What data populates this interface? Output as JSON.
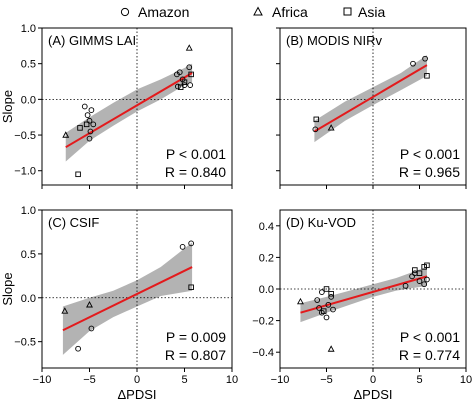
{
  "legend": {
    "position": "top",
    "items": [
      {
        "label": "Amazon",
        "marker": "circle"
      },
      {
        "label": "Africa",
        "marker": "triangle"
      },
      {
        "label": "Asia",
        "marker": "square"
      }
    ]
  },
  "colors": {
    "fit_line": "#e31a1c",
    "band": "#b3b3b3",
    "axis": "#000000"
  },
  "chart_data": [
    {
      "type": "scatter",
      "id": "A",
      "title": "(A) GIMMS LAI",
      "xlabel": "",
      "ylabel": "Slope",
      "xlim": [
        -10,
        10
      ],
      "ylim": [
        -1.2,
        1.0
      ],
      "xticks": [
        -10,
        -5,
        0,
        5,
        10
      ],
      "yticks": [
        -1.0,
        -0.5,
        0.0,
        0.5,
        1.0
      ],
      "xtick_labels": [
        "",
        "",
        "",
        "",
        ""
      ],
      "ytick_labels": [
        "−1.0",
        "−0.5",
        "0.0",
        "0.5",
        "1.0"
      ],
      "stats": {
        "p": "P < 0.001",
        "r": "R = 0.840"
      },
      "fit": {
        "x0": -7.5,
        "x1": 5.8,
        "y0": -0.67,
        "y1": 0.37
      },
      "band": {
        "upper": [
          [
            -7.5,
            -0.47
          ],
          [
            -5,
            -0.25
          ],
          [
            -2.5,
            -0.05
          ],
          [
            0,
            0.14
          ],
          [
            2.5,
            0.28
          ],
          [
            5,
            0.44
          ],
          [
            5.8,
            0.5
          ]
        ],
        "lower": [
          [
            -7.5,
            -0.87
          ],
          [
            -5,
            -0.58
          ],
          [
            -2.5,
            -0.37
          ],
          [
            0,
            -0.17
          ],
          [
            2.5,
            0.0
          ],
          [
            5,
            0.2
          ],
          [
            5.8,
            0.24
          ]
        ]
      },
      "series": [
        {
          "name": "Amazon",
          "marker": "circle",
          "points": [
            [
              -5.5,
              -0.1
            ],
            [
              -5.2,
              -0.22
            ],
            [
              -5.0,
              -0.3
            ],
            [
              -4.8,
              -0.15
            ],
            [
              -4.9,
              -0.45
            ],
            [
              -5.0,
              -0.55
            ],
            [
              -4.6,
              -0.35
            ],
            [
              4.2,
              0.35
            ],
            [
              4.5,
              0.38
            ],
            [
              4.8,
              0.28
            ],
            [
              5.0,
              0.2
            ],
            [
              5.5,
              0.45
            ],
            [
              5.6,
              0.2
            ],
            [
              4.3,
              0.18
            ]
          ]
        },
        {
          "name": "Africa",
          "marker": "triangle",
          "points": [
            [
              -7.5,
              -0.5
            ],
            [
              5.5,
              0.72
            ]
          ]
        },
        {
          "name": "Asia",
          "marker": "square",
          "points": [
            [
              -6.2,
              -1.05
            ],
            [
              -6.0,
              -0.4
            ],
            [
              -5.3,
              -0.35
            ],
            [
              4.6,
              0.17
            ],
            [
              5.0,
              0.24
            ],
            [
              5.7,
              0.35
            ]
          ]
        }
      ]
    },
    {
      "type": "scatter",
      "id": "B",
      "title": "(B) MODIS NIRv",
      "xlabel": "",
      "ylabel": "",
      "xlim": [
        -10,
        10
      ],
      "ylim": [
        -1.2,
        1.0
      ],
      "xticks": [
        -10,
        -5,
        0,
        5,
        10
      ],
      "yticks": [
        -1.0,
        -0.5,
        0.0,
        0.5,
        1.0
      ],
      "xtick_labels": [
        "",
        "",
        "",
        "",
        ""
      ],
      "ytick_labels": [
        "",
        "",
        "",
        "",
        ""
      ],
      "stats": {
        "p": "P < 0.001",
        "r": "R = 0.965"
      },
      "fit": {
        "x0": -6.3,
        "x1": 5.8,
        "y0": -0.45,
        "y1": 0.48
      },
      "band": {
        "upper": [
          [
            -6.3,
            -0.3
          ],
          [
            -3,
            -0.03
          ],
          [
            0,
            0.17
          ],
          [
            3,
            0.37
          ],
          [
            5.8,
            0.62
          ]
        ],
        "lower": [
          [
            -6.3,
            -0.6
          ],
          [
            -3,
            -0.3
          ],
          [
            0,
            -0.08
          ],
          [
            3,
            0.13
          ],
          [
            5.8,
            0.33
          ]
        ]
      },
      "series": [
        {
          "name": "Amazon",
          "marker": "circle",
          "points": [
            [
              -6.2,
              -0.42
            ],
            [
              4.3,
              0.5
            ],
            [
              5.6,
              0.57
            ]
          ]
        },
        {
          "name": "Africa",
          "marker": "triangle",
          "points": [
            [
              -4.5,
              -0.4
            ]
          ]
        },
        {
          "name": "Asia",
          "marker": "square",
          "points": [
            [
              -6.1,
              -0.28
            ],
            [
              5.8,
              0.33
            ]
          ]
        }
      ]
    },
    {
      "type": "scatter",
      "id": "C",
      "title": "(C) CSIF",
      "xlabel": "ΔPDSI",
      "ylabel": "Slope",
      "xlim": [
        -10,
        10
      ],
      "ylim": [
        -0.8,
        1.0
      ],
      "xticks": [
        -10,
        -5,
        0,
        5,
        10
      ],
      "yticks": [
        -0.5,
        0.0,
        0.5,
        1.0
      ],
      "xtick_labels": [
        "−10",
        "−5",
        "0",
        "5",
        "10"
      ],
      "ytick_labels": [
        "−0.5",
        "0.0",
        "0.5",
        "1.0"
      ],
      "stats": {
        "p": "P = 0.009",
        "r": "R = 0.807"
      },
      "fit": {
        "x0": -7.8,
        "x1": 5.8,
        "y0": -0.37,
        "y1": 0.35
      },
      "band": {
        "upper": [
          [
            -7.8,
            -0.1
          ],
          [
            -5,
            0.0
          ],
          [
            -2.5,
            0.08
          ],
          [
            0,
            0.2
          ],
          [
            2.5,
            0.35
          ],
          [
            5.8,
            0.63
          ]
        ],
        "lower": [
          [
            -7.8,
            -0.65
          ],
          [
            -5,
            -0.38
          ],
          [
            -2.5,
            -0.22
          ],
          [
            0,
            -0.1
          ],
          [
            2.5,
            0.02
          ],
          [
            5.8,
            0.08
          ]
        ]
      },
      "series": [
        {
          "name": "Amazon",
          "marker": "circle",
          "points": [
            [
              -6.2,
              -0.58
            ],
            [
              -4.8,
              -0.35
            ],
            [
              4.8,
              0.58
            ],
            [
              5.7,
              0.62
            ]
          ]
        },
        {
          "name": "Africa",
          "marker": "triangle",
          "points": [
            [
              -7.6,
              -0.15
            ],
            [
              -5.0,
              -0.08
            ]
          ]
        },
        {
          "name": "Asia",
          "marker": "square",
          "points": [
            [
              5.7,
              0.12
            ]
          ]
        }
      ]
    },
    {
      "type": "scatter",
      "id": "D",
      "title": "(D) Ku-VOD",
      "xlabel": "ΔPDSI",
      "ylabel": "",
      "xlim": [
        -10,
        10
      ],
      "ylim": [
        -0.5,
        0.5
      ],
      "xticks": [
        -10,
        -5,
        0,
        5,
        10
      ],
      "yticks": [
        -0.4,
        -0.2,
        0.0,
        0.2,
        0.4
      ],
      "xtick_labels": [
        "−10",
        "−5",
        "0",
        "5",
        "10"
      ],
      "ytick_labels": [
        "−0.4",
        "−0.2",
        "0.0",
        "0.2",
        "0.4"
      ],
      "stats": {
        "p": "P < 0.001",
        "r": "R = 0.774"
      },
      "fit": {
        "x0": -7.8,
        "x1": 5.8,
        "y0": -0.15,
        "y1": 0.08
      },
      "band": {
        "upper": [
          [
            -7.8,
            -0.09
          ],
          [
            -5,
            -0.05
          ],
          [
            -2.5,
            -0.01
          ],
          [
            0,
            0.03
          ],
          [
            2.5,
            0.07
          ],
          [
            5.8,
            0.14
          ]
        ],
        "lower": [
          [
            -7.8,
            -0.21
          ],
          [
            -5,
            -0.15
          ],
          [
            -2.5,
            -0.1
          ],
          [
            0,
            -0.05
          ],
          [
            2.5,
            -0.01
          ],
          [
            5.8,
            0.02
          ]
        ]
      },
      "series": [
        {
          "name": "Amazon",
          "marker": "circle",
          "points": [
            [
              -6.0,
              -0.07
            ],
            [
              -5.8,
              -0.12
            ],
            [
              -5.5,
              -0.15
            ],
            [
              -5.5,
              -0.02
            ],
            [
              -5.0,
              -0.18
            ],
            [
              -4.8,
              -0.1
            ],
            [
              -4.5,
              -0.05
            ],
            [
              -4.3,
              -0.13
            ],
            [
              3.5,
              0.02
            ],
            [
              4.2,
              0.08
            ],
            [
              4.5,
              0.1
            ],
            [
              5.0,
              0.05
            ],
            [
              5.5,
              0.03
            ],
            [
              5.8,
              0.06
            ]
          ]
        },
        {
          "name": "Africa",
          "marker": "triangle",
          "points": [
            [
              -7.8,
              -0.08
            ],
            [
              -4.5,
              -0.38
            ]
          ]
        },
        {
          "name": "Asia",
          "marker": "square",
          "points": [
            [
              -5.0,
              0.0
            ],
            [
              -4.5,
              -0.03
            ],
            [
              -5.3,
              -0.14
            ],
            [
              4.5,
              0.12
            ],
            [
              5.0,
              0.1
            ],
            [
              5.5,
              0.14
            ],
            [
              5.8,
              0.15
            ]
          ]
        }
      ]
    }
  ]
}
